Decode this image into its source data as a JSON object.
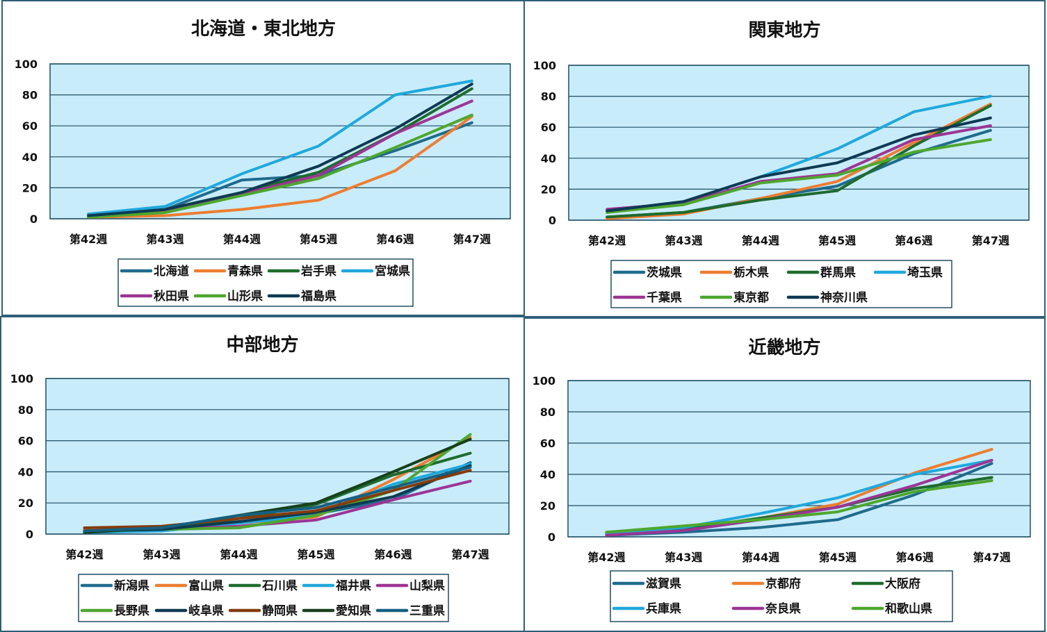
{
  "chart_data": [
    {
      "type": "line",
      "title": "北海道・東北地方",
      "categories": [
        "第42週",
        "第43週",
        "第44週",
        "第45週",
        "第46週",
        "第47週"
      ],
      "ylim": [
        0,
        100
      ],
      "yticks": [
        0,
        20,
        40,
        60,
        80,
        100
      ],
      "legend_position": "bottom",
      "series": [
        {
          "name": "北海道",
          "color": "#1f6b8c",
          "values": [
            3,
            6,
            25,
            28,
            44,
            62
          ]
        },
        {
          "name": "青森県",
          "color": "#ed7d31",
          "values": [
            1,
            2,
            6,
            12,
            31,
            66
          ]
        },
        {
          "name": "岩手県",
          "color": "#1e6b2d",
          "values": [
            1,
            5,
            17,
            30,
            55,
            84
          ]
        },
        {
          "name": "宮城県",
          "color": "#20a8dc",
          "values": [
            3,
            8,
            29,
            47,
            80,
            89
          ]
        },
        {
          "name": "秋田県",
          "color": "#9c3594",
          "values": [
            2,
            5,
            16,
            28,
            55,
            76
          ]
        },
        {
          "name": "山形県",
          "color": "#4ea72e",
          "values": [
            1,
            4,
            15,
            26,
            46,
            67
          ]
        },
        {
          "name": "福島県",
          "color": "#0e3a52",
          "values": [
            2,
            6,
            17,
            34,
            58,
            87
          ]
        }
      ]
    },
    {
      "type": "line",
      "title": "関東地方",
      "categories": [
        "第42週",
        "第43週",
        "第44週",
        "第45週",
        "第46週",
        "第47週"
      ],
      "ylim": [
        0,
        100
      ],
      "yticks": [
        0,
        20,
        40,
        60,
        80,
        100
      ],
      "legend_position": "bottom",
      "series": [
        {
          "name": "茨城県",
          "color": "#1f6b8c",
          "values": [
            2,
            5,
            14,
            22,
            43,
            58
          ]
        },
        {
          "name": "栃木県",
          "color": "#ed7d31",
          "values": [
            1,
            4,
            14,
            25,
            50,
            75
          ]
        },
        {
          "name": "群馬県",
          "color": "#1e6b2d",
          "values": [
            2,
            5,
            13,
            19,
            48,
            74
          ]
        },
        {
          "name": "埼玉県",
          "color": "#20a8dc",
          "values": [
            6,
            12,
            28,
            46,
            70,
            80
          ]
        },
        {
          "name": "千葉県",
          "color": "#9c3594",
          "values": [
            7,
            11,
            25,
            30,
            52,
            61
          ]
        },
        {
          "name": "東京都",
          "color": "#4ea72e",
          "values": [
            5,
            10,
            24,
            29,
            44,
            52
          ]
        },
        {
          "name": "神奈川県",
          "color": "#0e3a52",
          "values": [
            6,
            12,
            28,
            37,
            55,
            66
          ]
        }
      ]
    },
    {
      "type": "line",
      "title": "中部地方",
      "categories": [
        "第42週",
        "第43週",
        "第44週",
        "第45週",
        "第46週",
        "第47週"
      ],
      "ylim": [
        0,
        100
      ],
      "yticks": [
        0,
        20,
        40,
        60,
        80,
        100
      ],
      "legend_position": "bottom",
      "series": [
        {
          "name": "新潟県",
          "color": "#1f6b8c",
          "values": [
            2,
            3,
            8,
            13,
            22,
            46
          ]
        },
        {
          "name": "富山県",
          "color": "#ed7d31",
          "values": [
            3,
            4,
            7,
            11,
            35,
            62
          ]
        },
        {
          "name": "石川県",
          "color": "#1e6b2d",
          "values": [
            2,
            3,
            10,
            19,
            38,
            52
          ]
        },
        {
          "name": "福井県",
          "color": "#20a8dc",
          "values": [
            1,
            2,
            7,
            12,
            32,
            45
          ]
        },
        {
          "name": "山梨県",
          "color": "#9c3594",
          "values": [
            2,
            3,
            5,
            9,
            22,
            34
          ]
        },
        {
          "name": "長野県",
          "color": "#4ea72e",
          "values": [
            2,
            3,
            4,
            12,
            28,
            64
          ]
        },
        {
          "name": "岐阜県",
          "color": "#0e3a52",
          "values": [
            2,
            3,
            8,
            14,
            24,
            44
          ]
        },
        {
          "name": "静岡県",
          "color": "#843c0c",
          "values": [
            4,
            5,
            10,
            15,
            28,
            41
          ]
        },
        {
          "name": "愛知県",
          "color": "#17401a",
          "values": [
            1,
            4,
            12,
            20,
            40,
            61
          ]
        },
        {
          "name": "三重県",
          "color": "#156082",
          "values": [
            2,
            4,
            12,
            17,
            30,
            43
          ]
        }
      ]
    },
    {
      "type": "line",
      "title": "近畿地方",
      "categories": [
        "第42週",
        "第43週",
        "第44週",
        "第45週",
        "第46週",
        "第47週"
      ],
      "ylim": [
        0,
        100
      ],
      "yticks": [
        0,
        20,
        40,
        60,
        80,
        100
      ],
      "legend_position": "bottom",
      "series": [
        {
          "name": "滋賀県",
          "color": "#1f6b8c",
          "values": [
            1,
            3,
            6,
            11,
            27,
            47
          ]
        },
        {
          "name": "京都府",
          "color": "#ed7d31",
          "values": [
            2,
            5,
            12,
            21,
            41,
            56
          ]
        },
        {
          "name": "大阪府",
          "color": "#1e6b2d",
          "values": [
            2,
            5,
            12,
            19,
            31,
            38
          ]
        },
        {
          "name": "兵庫県",
          "color": "#20a8dc",
          "values": [
            2,
            6,
            15,
            25,
            40,
            49
          ]
        },
        {
          "name": "奈良県",
          "color": "#9c3594",
          "values": [
            1,
            4,
            11,
            19,
            33,
            49
          ]
        },
        {
          "name": "和歌山県",
          "color": "#4ea72e",
          "values": [
            3,
            7,
            11,
            16,
            29,
            36
          ]
        }
      ]
    }
  ]
}
